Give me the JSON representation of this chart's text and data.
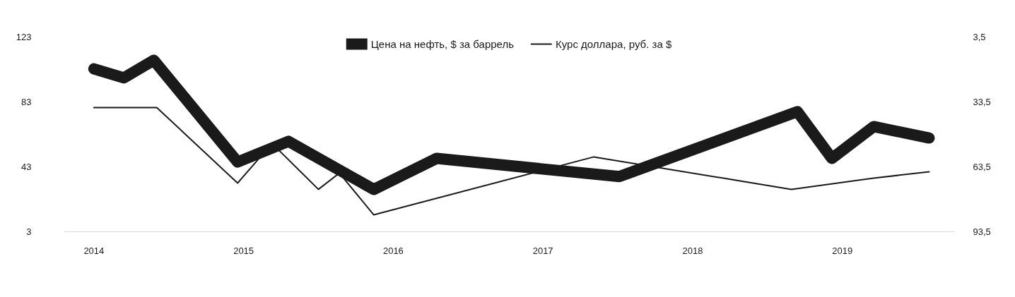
{
  "chart_data": {
    "type": "line",
    "xlim": [
      2013.8,
      2019.75
    ],
    "xticks": [
      2014,
      2015,
      2016,
      2017,
      2018,
      2019
    ],
    "ylim": [
      3,
      123
    ],
    "yticks": [
      3,
      43,
      83,
      123
    ],
    "y2lim": [
      93.5,
      3.5
    ],
    "y2ticks": [
      {
        "value": 3.5,
        "label": "3,5"
      },
      {
        "value": 33.5,
        "label": "33,5"
      },
      {
        "value": 63.5,
        "label": "63,5"
      },
      {
        "value": 93.5,
        "label": "93,5"
      }
    ],
    "grid": false,
    "legend": "top",
    "marker": "none",
    "line_style": "solid",
    "series": [
      {
        "name": "Цена на нефть, $ за баррель",
        "color": "#1a1a1a",
        "x": [
          2014.0,
          2014.2,
          2014.4,
          2014.96,
          2015.3,
          2015.87,
          2016.29,
          2017.51,
          2018.7,
          2018.93,
          2019.21,
          2019.58
        ],
        "values": [
          103.4,
          97.8,
          108.7,
          46.0,
          58.7,
          29.1,
          48.2,
          37.0,
          77.0,
          48.2,
          67.8,
          60.8
        ]
      },
      {
        "name": "Курс доллара, руб. за $",
        "color": "#1a1a1a",
        "axis": "y2",
        "x": [
          2014.0,
          2014.42,
          2014.96,
          2015.19,
          2015.5,
          2015.64,
          2015.87,
          2017.34,
          2018.66,
          2019.21,
          2019.58
        ],
        "values": [
          36.1,
          36.1,
          71.0,
          52.7,
          73.9,
          66.4,
          85.7,
          58.9,
          73.9,
          68.7,
          65.8
        ]
      }
    ]
  }
}
